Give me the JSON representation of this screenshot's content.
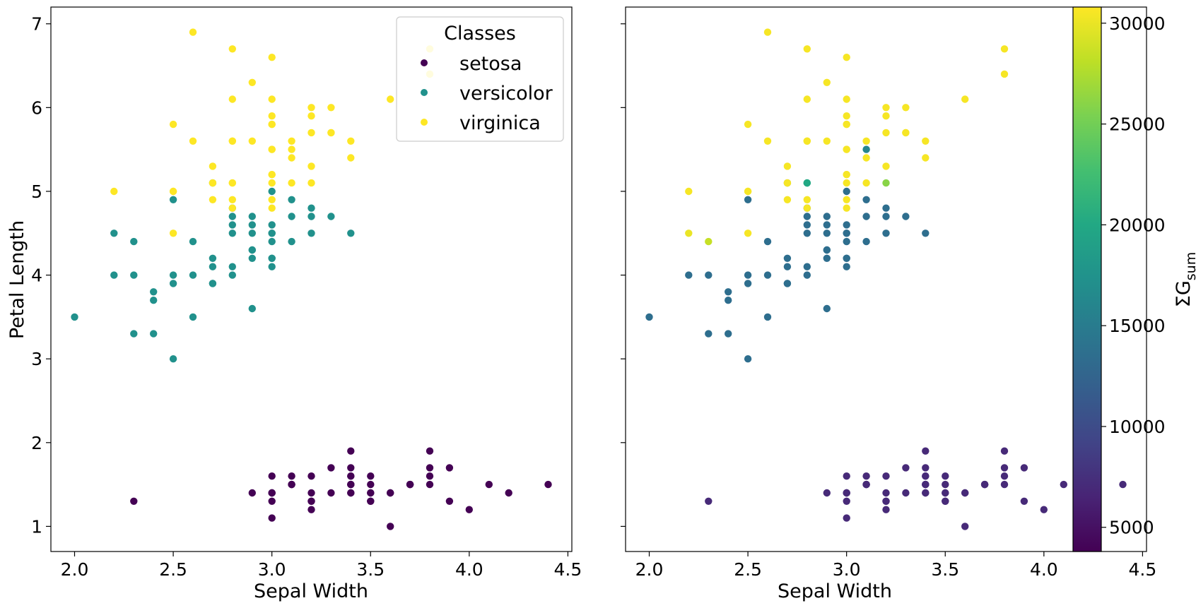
{
  "chart_data": [
    {
      "type": "scatter",
      "xlabel": "Sepal Width",
      "ylabel": "Petal Length",
      "xlim": [
        1.88,
        4.52
      ],
      "ylim": [
        0.7,
        7.2
      ],
      "xticks": [
        "2.0",
        "2.5",
        "3.0",
        "3.5",
        "4.0",
        "4.5"
      ],
      "yticks": [
        "1",
        "2",
        "3",
        "4",
        "5",
        "6",
        "7"
      ],
      "grid": false,
      "legend": {
        "title": "Classes",
        "placement": "top-right",
        "entries": [
          "setosa",
          "versicolor",
          "virginica"
        ]
      },
      "class_colors": [
        "#440154",
        "#21918c",
        "#fde725"
      ],
      "series": [
        {
          "name": "setosa",
          "points": [
            [
              3.5,
              1.4
            ],
            [
              3.0,
              1.4
            ],
            [
              3.2,
              1.3
            ],
            [
              3.1,
              1.5
            ],
            [
              3.6,
              1.4
            ],
            [
              3.9,
              1.7
            ],
            [
              3.4,
              1.4
            ],
            [
              3.4,
              1.5
            ],
            [
              2.9,
              1.4
            ],
            [
              3.1,
              1.5
            ],
            [
              3.7,
              1.5
            ],
            [
              3.4,
              1.6
            ],
            [
              3.0,
              1.4
            ],
            [
              3.0,
              1.1
            ],
            [
              4.0,
              1.2
            ],
            [
              4.4,
              1.5
            ],
            [
              3.9,
              1.3
            ],
            [
              3.5,
              1.4
            ],
            [
              3.8,
              1.7
            ],
            [
              3.8,
              1.5
            ],
            [
              3.4,
              1.7
            ],
            [
              3.7,
              1.5
            ],
            [
              3.6,
              1.0
            ],
            [
              3.3,
              1.7
            ],
            [
              3.4,
              1.9
            ],
            [
              3.0,
              1.6
            ],
            [
              3.4,
              1.6
            ],
            [
              3.5,
              1.5
            ],
            [
              3.4,
              1.4
            ],
            [
              3.2,
              1.6
            ],
            [
              3.1,
              1.6
            ],
            [
              3.4,
              1.5
            ],
            [
              4.1,
              1.5
            ],
            [
              4.2,
              1.4
            ],
            [
              3.1,
              1.5
            ],
            [
              3.2,
              1.2
            ],
            [
              3.5,
              1.3
            ],
            [
              3.6,
              1.4
            ],
            [
              3.0,
              1.3
            ],
            [
              3.4,
              1.5
            ],
            [
              3.5,
              1.3
            ],
            [
              2.3,
              1.3
            ],
            [
              3.2,
              1.3
            ],
            [
              3.5,
              1.6
            ],
            [
              3.8,
              1.9
            ],
            [
              3.0,
              1.4
            ],
            [
              3.8,
              1.6
            ],
            [
              3.2,
              1.4
            ],
            [
              3.7,
              1.5
            ],
            [
              3.3,
              1.4
            ]
          ]
        },
        {
          "name": "versicolor",
          "points": [
            [
              3.2,
              4.7
            ],
            [
              3.2,
              4.5
            ],
            [
              3.1,
              4.9
            ],
            [
              2.3,
              4.0
            ],
            [
              2.8,
              4.6
            ],
            [
              2.8,
              4.5
            ],
            [
              3.3,
              4.7
            ],
            [
              2.4,
              3.3
            ],
            [
              2.9,
              4.6
            ],
            [
              2.7,
              3.9
            ],
            [
              2.0,
              3.5
            ],
            [
              3.0,
              4.2
            ],
            [
              2.2,
              4.0
            ],
            [
              2.9,
              4.7
            ],
            [
              2.9,
              3.6
            ],
            [
              3.1,
              4.4
            ],
            [
              3.0,
              4.5
            ],
            [
              2.7,
              4.1
            ],
            [
              2.2,
              4.5
            ],
            [
              2.5,
              3.9
            ],
            [
              3.2,
              4.8
            ],
            [
              2.8,
              4.0
            ],
            [
              2.5,
              4.9
            ],
            [
              2.8,
              4.7
            ],
            [
              2.9,
              4.3
            ],
            [
              3.0,
              4.4
            ],
            [
              2.8,
              4.8
            ],
            [
              3.0,
              5.0
            ],
            [
              2.9,
              4.5
            ],
            [
              2.6,
              3.5
            ],
            [
              2.4,
              3.8
            ],
            [
              2.4,
              3.7
            ],
            [
              2.7,
              3.9
            ],
            [
              2.7,
              5.1
            ],
            [
              3.0,
              4.5
            ],
            [
              3.4,
              4.5
            ],
            [
              3.1,
              4.7
            ],
            [
              2.3,
              4.4
            ],
            [
              3.0,
              4.1
            ],
            [
              2.5,
              4.0
            ],
            [
              2.6,
              4.4
            ],
            [
              3.0,
              4.6
            ],
            [
              2.6,
              4.0
            ],
            [
              2.3,
              3.3
            ],
            [
              2.7,
              4.2
            ],
            [
              3.0,
              4.2
            ],
            [
              2.9,
              4.2
            ],
            [
              2.9,
              4.3
            ],
            [
              2.5,
              3.0
            ],
            [
              2.8,
              4.1
            ]
          ]
        },
        {
          "name": "virginica",
          "points": [
            [
              3.3,
              6.0
            ],
            [
              2.7,
              5.1
            ],
            [
              3.0,
              5.9
            ],
            [
              2.9,
              5.6
            ],
            [
              3.0,
              5.8
            ],
            [
              3.0,
              6.6
            ],
            [
              2.5,
              4.5
            ],
            [
              2.9,
              6.3
            ],
            [
              2.5,
              5.8
            ],
            [
              3.6,
              6.1
            ],
            [
              3.2,
              5.1
            ],
            [
              2.7,
              5.3
            ],
            [
              3.0,
              5.5
            ],
            [
              2.5,
              5.0
            ],
            [
              2.8,
              5.1
            ],
            [
              3.2,
              5.3
            ],
            [
              3.0,
              5.5
            ],
            [
              3.8,
              6.7
            ],
            [
              2.6,
              6.9
            ],
            [
              2.2,
              5.0
            ],
            [
              3.2,
              5.7
            ],
            [
              2.8,
              4.9
            ],
            [
              2.8,
              6.7
            ],
            [
              2.7,
              4.9
            ],
            [
              3.3,
              5.7
            ],
            [
              3.2,
              6.0
            ],
            [
              2.8,
              4.8
            ],
            [
              3.0,
              4.9
            ],
            [
              2.8,
              5.6
            ],
            [
              3.0,
              5.8
            ],
            [
              2.8,
              6.1
            ],
            [
              3.8,
              6.4
            ],
            [
              2.8,
              5.6
            ],
            [
              2.8,
              5.1
            ],
            [
              2.6,
              5.6
            ],
            [
              3.0,
              6.1
            ],
            [
              3.4,
              5.6
            ],
            [
              3.1,
              5.5
            ],
            [
              3.0,
              4.8
            ],
            [
              3.1,
              5.4
            ],
            [
              3.1,
              5.6
            ],
            [
              3.1,
              5.1
            ],
            [
              2.7,
              5.1
            ],
            [
              3.2,
              5.9
            ],
            [
              3.3,
              5.7
            ],
            [
              3.0,
              5.2
            ],
            [
              2.5,
              5.0
            ],
            [
              3.0,
              5.2
            ],
            [
              3.4,
              5.4
            ],
            [
              3.0,
              5.1
            ]
          ]
        }
      ]
    },
    {
      "type": "scatter",
      "xlabel": "Sepal Width",
      "ylabel": "",
      "xlim": [
        1.88,
        4.52
      ],
      "ylim": [
        0.7,
        7.2
      ],
      "xticks": [
        "2.0",
        "2.5",
        "3.0",
        "3.5",
        "4.0",
        "4.5"
      ],
      "grid": false,
      "colorbar": {
        "label": "ΣG",
        "label_sub": "sum",
        "range": [
          3800,
          30800
        ],
        "ticks": [
          "5000",
          "10000",
          "15000",
          "20000",
          "25000",
          "30000"
        ],
        "colormap": "viridis"
      },
      "default_values": {
        "setosa": 7000,
        "versicolor": 13500,
        "virginica": 30500
      },
      "overrides": [
        {
          "x": 3.1,
          "y": 5.5,
          "value": 16000
        },
        {
          "x": 2.8,
          "y": 5.1,
          "value": 20000
        },
        {
          "x": 3.2,
          "y": 5.1,
          "value": 26000
        },
        {
          "x": 2.3,
          "y": 4.4,
          "value": 28500
        },
        {
          "x": 2.2,
          "y": 4.5,
          "value": 30000
        }
      ]
    }
  ]
}
